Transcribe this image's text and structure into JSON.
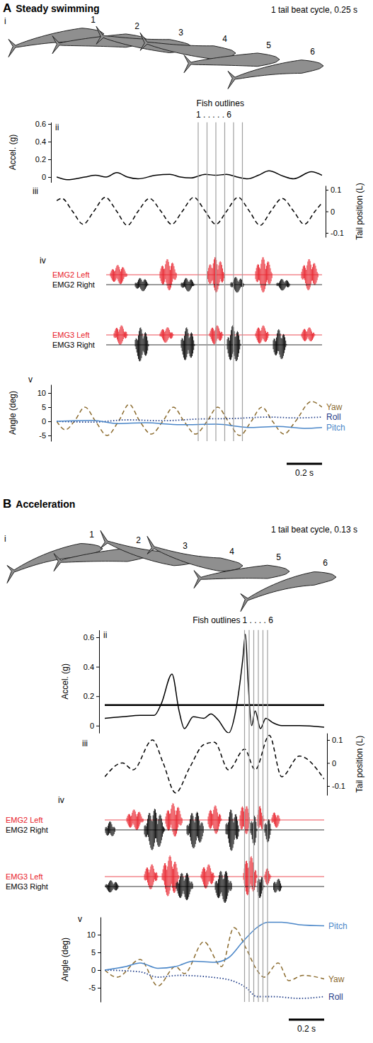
{
  "chart_data": [
    {
      "type": "line",
      "panel": "A",
      "title": "Steady swimming",
      "xlim": [
        0,
        1.5
      ],
      "tick_labels": "y",
      "outlines": {
        "label": "i",
        "caption": "1 tail beat cycle, 0.25 s",
        "numbers": [
          "1",
          "2",
          "3",
          "4",
          "5",
          "6"
        ]
      },
      "markers": {
        "label": "Fish outlines",
        "range_label": "1 . . . . . 6",
        "x": [
          0.8,
          0.85,
          0.9,
          0.95,
          1.0,
          1.05
        ]
      },
      "scale_bar": {
        "value": 0.2,
        "label": "0.2 s"
      },
      "acceleration": {
        "label": "ii",
        "ylabel": "Accel. (g)",
        "ylim": [
          -0.06,
          0.62
        ],
        "yticks": [
          0,
          0.2,
          0.4,
          0.6
        ],
        "series": [
          {
            "color": "#000000",
            "line_style": "solid",
            "x": [
              0,
              0.06,
              0.16,
              0.22,
              0.28,
              0.34,
              0.4,
              0.46,
              0.56,
              0.64,
              0.7,
              0.76,
              0.84,
              0.9,
              0.96,
              1.02,
              1.08,
              1.14,
              1.2,
              1.28,
              1.34,
              1.44,
              1.5
            ],
            "values": [
              0,
              -0.03,
              0,
              0.02,
              0,
              0.05,
              0,
              -0.02,
              0.02,
              0.03,
              0,
              -0.01,
              0.03,
              0.02,
              0.03,
              0,
              -0.02,
              0.02,
              0.07,
              0.01,
              -0.02,
              0.06,
              0.02
            ]
          }
        ]
      },
      "tail": {
        "label": "iii",
        "ylabel": "Tail position (L)",
        "ylim": [
          -0.12,
          0.12
        ],
        "yticks": [
          -0.1,
          0,
          0.1
        ],
        "series": [
          {
            "color": "#000000",
            "line_style": "dashed",
            "x": [
              0,
              0.03,
              0.09,
              0.15,
              0.21,
              0.275,
              0.34,
              0.4,
              0.46,
              0.525,
              0.59,
              0.65,
              0.71,
              0.775,
              0.84,
              0.9,
              0.96,
              1.025,
              1.09,
              1.15,
              1.21,
              1.275,
              1.34,
              1.4,
              1.46,
              1.5
            ],
            "values": [
              0.05,
              0.06,
              0,
              -0.06,
              0,
              0.065,
              0,
              -0.065,
              0,
              0.06,
              0,
              -0.06,
              0,
              0.065,
              0,
              -0.06,
              0,
              0.065,
              0,
              -0.065,
              0,
              0.06,
              0,
              -0.06,
              0,
              0.04
            ]
          }
        ]
      },
      "emg": {
        "label": "iv",
        "xlim": [
          0.28,
          1.5
        ],
        "series": [
          {
            "name": "EMG2 Left",
            "color": "#e8202a",
            "bursts": [
              [
                0.3,
                0.4,
                0.5
              ],
              [
                0.58,
                0.68,
                0.8
              ],
              [
                0.85,
                0.95,
                0.9
              ],
              [
                1.12,
                1.22,
                0.9
              ],
              [
                1.38,
                1.48,
                0.8
              ]
            ]
          },
          {
            "name": "EMG2 Right",
            "color": "#000000",
            "bursts": [
              [
                0.44,
                0.52,
                0.35
              ],
              [
                0.7,
                0.78,
                0.35
              ],
              [
                0.98,
                1.06,
                0.4
              ],
              [
                1.24,
                1.32,
                0.3
              ]
            ]
          },
          {
            "name": "EMG3 Left",
            "color": "#e8202a",
            "bursts": [
              [
                0.32,
                0.4,
                0.5
              ],
              [
                0.58,
                0.66,
                0.4
              ],
              [
                0.86,
                0.94,
                0.5
              ],
              [
                1.12,
                1.2,
                0.5
              ],
              [
                1.38,
                1.46,
                0.4
              ]
            ]
          },
          {
            "name": "EMG3 Right",
            "color": "#000000",
            "bursts": [
              [
                0.44,
                0.52,
                0.9
              ],
              [
                0.7,
                0.78,
                0.9
              ],
              [
                0.96,
                1.04,
                1.0
              ],
              [
                1.22,
                1.3,
                0.8
              ]
            ]
          }
        ]
      },
      "angles": {
        "label": "v",
        "ylabel": "Angle (deg)",
        "ylim": [
          -7,
          13
        ],
        "yticks": [
          -5,
          0,
          5,
          10
        ],
        "legend": "right",
        "series": [
          {
            "name": "Yaw",
            "color": "#8b6b2e",
            "line_style": "dashed",
            "x": [
              0,
              0.05,
              0.1,
              0.16,
              0.22,
              0.285,
              0.35,
              0.41,
              0.47,
              0.535,
              0.6,
              0.66,
              0.72,
              0.785,
              0.85,
              0.91,
              0.97,
              1.035,
              1.1,
              1.16,
              1.22,
              1.285,
              1.35,
              1.44,
              1.5
            ],
            "values": [
              0,
              -3,
              0,
              5,
              0,
              -5,
              0,
              6,
              0,
              -4.5,
              0,
              5,
              0,
              -4.5,
              0,
              5,
              0,
              -5,
              0,
              5,
              0,
              -4.5,
              0,
              7,
              5
            ]
          },
          {
            "name": "Roll",
            "color": "#1f3c88",
            "line_style": "dotted",
            "x": [
              0,
              0.2,
              0.4,
              0.6,
              0.8,
              1.0,
              1.2,
              1.35,
              1.5
            ],
            "values": [
              0,
              -0.3,
              0.5,
              0.2,
              0.8,
              1,
              1.5,
              1.2,
              1.5
            ]
          },
          {
            "name": "Pitch",
            "color": "#4a86c8",
            "line_style": "solid",
            "x": [
              0,
              0.2,
              0.35,
              0.5,
              0.7,
              0.9,
              1.1,
              1.25,
              1.4,
              1.5
            ],
            "values": [
              0,
              0.3,
              -0.8,
              -0.5,
              -1.2,
              -1,
              -2.2,
              -1.8,
              -2.5,
              -2.2
            ]
          }
        ]
      }
    },
    {
      "type": "line",
      "panel": "B",
      "title": "Acceleration",
      "xlim": [
        0,
        1.24
      ],
      "tick_labels": "y",
      "outlines": {
        "label": "i",
        "caption": "1 tail beat cycle, 0.13 s",
        "numbers": [
          "1",
          "2",
          "3",
          "4",
          "5",
          "6"
        ]
      },
      "markers": {
        "label": "Fish outlines",
        "range_label": "1 . . . . 6",
        "x": [
          0.79,
          0.816,
          0.842,
          0.868,
          0.894,
          0.92
        ]
      },
      "scale_bar": {
        "value": 0.2,
        "label": "0.2 s"
      },
      "acceleration": {
        "label": "ii",
        "ylabel": "Accel. (g)",
        "ylim": [
          -0.05,
          0.65
        ],
        "yticks": [
          0,
          0.2,
          0.4,
          0.6
        ],
        "threshold": 0.14,
        "series": [
          {
            "color": "#000000",
            "line_style": "solid",
            "x": [
              0,
              0.1,
              0.2,
              0.28,
              0.32,
              0.38,
              0.42,
              0.45,
              0.5,
              0.56,
              0.6,
              0.64,
              0.7,
              0.74,
              0.78,
              0.795,
              0.81,
              0.83,
              0.85,
              0.88,
              0.91,
              0.95,
              1,
              1.1,
              1.24
            ],
            "values": [
              0.05,
              0.06,
              0.07,
              0.07,
              0.15,
              0.35,
              0.1,
              -0.02,
              0.06,
              0.05,
              0.08,
              0.04,
              -0.05,
              0.1,
              0.45,
              0.62,
              0.3,
              0,
              0.1,
              -0.02,
              0.05,
              0.02,
              0,
              0,
              -0.01
            ]
          }
        ]
      },
      "tail": {
        "label": "iii",
        "ylabel": "Tail position (L)",
        "ylim": [
          -0.14,
          0.13
        ],
        "yticks": [
          -0.1,
          0,
          0.1
        ],
        "series": [
          {
            "color": "#000000",
            "line_style": "dashed",
            "x": [
              0,
              0.1,
              0.16,
              0.27,
              0.33,
              0.4,
              0.48,
              0.56,
              0.62,
              0.7,
              0.79,
              0.85,
              0.93,
              1,
              1.1,
              1.24
            ],
            "values": [
              -0.06,
              0,
              -0.03,
              0.1,
              0,
              -0.13,
              -0.02,
              0.08,
              0.09,
              -0.03,
              0.06,
              -0.03,
              0.12,
              -0.06,
              0.03,
              -0.07
            ]
          }
        ]
      },
      "emg": {
        "label": "iv",
        "xlim": [
          0,
          1.24
        ],
        "series": [
          {
            "name": "EMG2 Left",
            "color": "#e8202a",
            "bursts": [
              [
                0.12,
                0.22,
                0.5
              ],
              [
                0.34,
                0.44,
                0.8
              ],
              [
                0.58,
                0.66,
                0.7
              ],
              [
                0.76,
                0.82,
                0.8
              ],
              [
                0.86,
                0.9,
                0.7
              ],
              [
                0.94,
                0.99,
                0.4
              ]
            ]
          },
          {
            "name": "EMG2 Right",
            "color": "#000000",
            "bursts": [
              [
                0,
                0.06,
                0.4
              ],
              [
                0.22,
                0.34,
                1
              ],
              [
                0.46,
                0.56,
                0.9
              ],
              [
                0.68,
                0.76,
                1
              ],
              [
                0.82,
                0.86,
                0.8
              ],
              [
                0.9,
                0.94,
                0.6
              ]
            ]
          },
          {
            "name": "EMG3 Left",
            "color": "#e8202a",
            "bursts": [
              [
                0.22,
                0.3,
                0.6
              ],
              [
                0.32,
                0.42,
                1
              ],
              [
                0.54,
                0.62,
                0.6
              ],
              [
                0.78,
                0.86,
                1
              ],
              [
                0.9,
                0.94,
                0.4
              ]
            ]
          },
          {
            "name": "EMG3 Right",
            "color": "#000000",
            "bursts": [
              [
                0,
                0.08,
                0.3
              ],
              [
                0.4,
                0.5,
                0.7
              ],
              [
                0.62,
                0.72,
                0.8
              ],
              [
                0.86,
                0.9,
                0.6
              ],
              [
                0.95,
                1,
                0.4
              ]
            ]
          }
        ]
      },
      "angles": {
        "label": "v",
        "ylabel": "Angle (deg)",
        "ylim": [
          -9,
          15
        ],
        "yticks": [
          -5,
          0,
          5,
          10
        ],
        "legend": "right",
        "series": [
          {
            "name": "Yaw",
            "color": "#8b6b2e",
            "line_style": "dashed",
            "x": [
              0,
              0.07,
              0.2,
              0.3,
              0.4,
              0.45,
              0.56,
              0.66,
              0.73,
              0.8,
              0.86,
              0.9,
              0.98,
              1.04,
              1.12,
              1.24
            ],
            "values": [
              0,
              -2,
              3,
              -4.5,
              1,
              -1,
              8,
              1,
              12,
              6,
              0,
              -2,
              2,
              -3,
              -1.5,
              -2.5
            ]
          },
          {
            "name": "Roll",
            "color": "#1f3c88",
            "line_style": "dotted",
            "x": [
              0,
              0.2,
              0.3,
              0.42,
              0.6,
              0.72,
              0.8,
              0.86,
              0.95,
              1.1,
              1.24
            ],
            "values": [
              0,
              -0.5,
              -2,
              -1.5,
              -2,
              -3,
              -5,
              -7.5,
              -7.5,
              -8,
              -7.5
            ]
          },
          {
            "name": "Pitch",
            "color": "#4a86c8",
            "line_style": "solid",
            "x": [
              0,
              0.12,
              0.2,
              0.3,
              0.4,
              0.5,
              0.62,
              0.7,
              0.78,
              0.86,
              0.92,
              1,
              1.1,
              1.24
            ],
            "values": [
              0,
              1,
              2,
              0.5,
              1,
              2.5,
              2.2,
              3.5,
              8,
              12,
              13.5,
              13.5,
              12.8,
              12.5
            ]
          }
        ]
      }
    }
  ]
}
